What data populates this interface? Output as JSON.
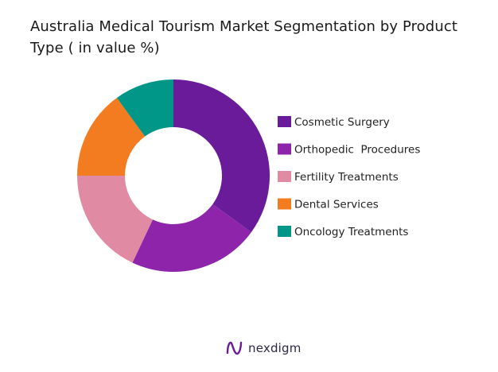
{
  "title": "Australia Medical Tourism Market Segmentation by Product Type ( in value %)",
  "chart_data": {
    "type": "pie",
    "variant": "donut",
    "categories": [
      "Cosmetic Surgery",
      "Orthopedic  Procedures",
      "Fertility Treatments",
      "Dental Services",
      "Oncology Treatments"
    ],
    "values": [
      35,
      22,
      18,
      15,
      10
    ],
    "colors": [
      "#6a1b9a",
      "#8e24aa",
      "#e08aa4",
      "#f47c20",
      "#009688"
    ],
    "legend_position": "right"
  },
  "footer": {
    "brand": "nexdigm",
    "logo_icon": "nexdigm-logo-icon",
    "logo_color": "#6a1b9a"
  }
}
